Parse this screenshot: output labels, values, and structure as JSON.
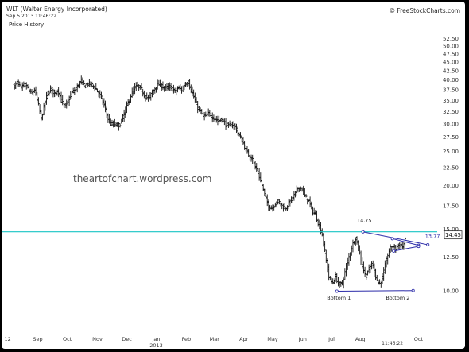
{
  "header": {
    "title": "WLT (Walter Energy Incorporated)",
    "subtitle": "Sep 5 2013 11:46:22",
    "pane_label": "Price History",
    "brand_icon": "copyright-icon",
    "brand_text": "FreeStockCharts.com",
    "watermark": "theartofchart.wordpress.com"
  },
  "colors": {
    "background": "#ffffff",
    "bars": "#111111",
    "support_line": "#19c5c5",
    "trend_lines": "#2a2aa8",
    "label_blue": "#2a2aa8"
  },
  "chart_data": {
    "type": "ohlc",
    "yscale": "log",
    "ylim": [
      9.3,
      55.5
    ],
    "y_ticks": [
      52.5,
      50.0,
      47.5,
      45.0,
      42.5,
      40.0,
      37.5,
      35.0,
      32.5,
      30.0,
      27.5,
      25.0,
      22.5,
      20.0,
      17.5,
      15.0,
      12.5,
      10.0
    ],
    "y_tick_labels": [
      "52.50",
      "50.00",
      "47.50",
      "45.00",
      "42.50",
      "40.00",
      "37.50",
      "35.00",
      "32.50",
      "30.00",
      "27.50",
      "25.00",
      "22.50",
      "20.00",
      "17.50",
      "15.00",
      "12.50",
      "10.00"
    ],
    "x_ticks": [
      {
        "label": "12",
        "week": -1,
        "sub": ""
      },
      {
        "label": "Sep",
        "week": 3.5,
        "sub": ""
      },
      {
        "label": "Oct",
        "week": 7.9,
        "sub": ""
      },
      {
        "label": "Nov",
        "week": 12.4,
        "sub": ""
      },
      {
        "label": "Dec",
        "week": 16.8,
        "sub": ""
      },
      {
        "label": "Jan",
        "week": 21.2,
        "sub": "2013"
      },
      {
        "label": "Feb",
        "week": 25.7,
        "sub": ""
      },
      {
        "label": "Mar",
        "week": 29.9,
        "sub": ""
      },
      {
        "label": "Apr",
        "week": 34.3,
        "sub": ""
      },
      {
        "label": "May",
        "week": 38.6,
        "sub": ""
      },
      {
        "label": "Jun",
        "week": 43.1,
        "sub": ""
      },
      {
        "label": "Jul",
        "week": 47.4,
        "sub": ""
      },
      {
        "label": "Aug",
        "week": 51.7,
        "sub": ""
      },
      {
        "label": "Oct",
        "week": 60.4,
        "sub": ""
      }
    ],
    "time_label": "11:46:22",
    "x_domain": [
      -1.2,
      63.2
    ],
    "price_series": {
      "name": "WLT",
      "points": [
        [
          0,
          38.5
        ],
        [
          0.5,
          39.5
        ],
        [
          1,
          37.8
        ],
        [
          1.5,
          38.8
        ],
        [
          2,
          38.0
        ],
        [
          2.5,
          36.5
        ],
        [
          3,
          37.5
        ],
        [
          3.5,
          34.5
        ],
        [
          4,
          31.0
        ],
        [
          4.5,
          34.0
        ],
        [
          5,
          36.8
        ],
        [
          5.5,
          37.8
        ],
        [
          6,
          36.5
        ],
        [
          6.5,
          37.5
        ],
        [
          7,
          35.0
        ],
        [
          7.5,
          33.5
        ],
        [
          8,
          34.8
        ],
        [
          8.5,
          36.5
        ],
        [
          9,
          37.5
        ],
        [
          9.5,
          38.5
        ],
        [
          10,
          39.8
        ],
        [
          10.5,
          38.5
        ],
        [
          11,
          39.0
        ],
        [
          11.5,
          38.8
        ],
        [
          12,
          38.2
        ],
        [
          12.5,
          37.0
        ],
        [
          13,
          35.5
        ],
        [
          13.5,
          33.5
        ],
        [
          14,
          31.0
        ],
        [
          14.5,
          29.8
        ],
        [
          15,
          30.0
        ],
        [
          15.5,
          29.5
        ],
        [
          16,
          30.5
        ],
        [
          16.5,
          32.5
        ],
        [
          17,
          34.5
        ],
        [
          17.5,
          36.5
        ],
        [
          18,
          38.0
        ],
        [
          18.5,
          38.5
        ],
        [
          19,
          37.5
        ],
        [
          19.5,
          36.0
        ],
        [
          20,
          35.5
        ],
        [
          20.5,
          36.5
        ],
        [
          21,
          38.0
        ],
        [
          21.5,
          39.0
        ],
        [
          22,
          38.5
        ],
        [
          22.5,
          37.8
        ],
        [
          23,
          38.2
        ],
        [
          23.5,
          38.0
        ],
        [
          24,
          37.0
        ],
        [
          24.5,
          38.0
        ],
        [
          25,
          37.5
        ],
        [
          25.5,
          39.0
        ],
        [
          26,
          39.5
        ],
        [
          26.5,
          37.0
        ],
        [
          27,
          35.0
        ],
        [
          27.5,
          33.0
        ],
        [
          28,
          32.0
        ],
        [
          28.5,
          31.5
        ],
        [
          29,
          32.0
        ],
        [
          29.5,
          31.5
        ],
        [
          30,
          31.0
        ],
        [
          30.5,
          30.5
        ],
        [
          31,
          31.0
        ],
        [
          31.5,
          30.0
        ],
        [
          32,
          29.5
        ],
        [
          32.5,
          30.0
        ],
        [
          33,
          29.5
        ],
        [
          33.5,
          28.0
        ],
        [
          34,
          27.0
        ],
        [
          34.5,
          25.5
        ],
        [
          35,
          24.5
        ],
        [
          35.5,
          24.0
        ],
        [
          36,
          22.5
        ],
        [
          36.5,
          21.5
        ],
        [
          37,
          20.0
        ],
        [
          37.5,
          18.5
        ],
        [
          38,
          17.5
        ],
        [
          38.5,
          17.2
        ],
        [
          39,
          17.8
        ],
        [
          39.5,
          18.0
        ],
        [
          40,
          17.5
        ],
        [
          40.5,
          17.2
        ],
        [
          41,
          17.8
        ],
        [
          41.5,
          18.3
        ],
        [
          42,
          19.0
        ],
        [
          42.5,
          19.8
        ],
        [
          43,
          19.5
        ],
        [
          43.5,
          18.5
        ],
        [
          44,
          18.0
        ],
        [
          44.5,
          17.0
        ],
        [
          45,
          16.5
        ],
        [
          45.5,
          15.5
        ],
        [
          46,
          14.5
        ],
        [
          46.5,
          12.5
        ],
        [
          47,
          11.0
        ],
        [
          47.5,
          10.5
        ],
        [
          48,
          11.0
        ],
        [
          48.5,
          10.4
        ],
        [
          49,
          10.5
        ],
        [
          49.5,
          11.5
        ],
        [
          50,
          12.5
        ],
        [
          50.5,
          13.5
        ],
        [
          51,
          14.2
        ],
        [
          51.5,
          13.0
        ],
        [
          52,
          11.8
        ],
        [
          52.5,
          11.0
        ],
        [
          53,
          11.5
        ],
        [
          53.5,
          12.0
        ],
        [
          54,
          11.0
        ],
        [
          54.5,
          10.4
        ],
        [
          55,
          10.9
        ],
        [
          55.5,
          12.0
        ],
        [
          56,
          13.0
        ],
        [
          56.5,
          13.5
        ],
        [
          57,
          13.2
        ],
        [
          57.5,
          13.6
        ],
        [
          58,
          13.4
        ],
        [
          58.5,
          14.0
        ]
      ]
    },
    "annotations": [
      {
        "text": "14.75",
        "week": 52.3,
        "price": 15.9
      },
      {
        "text": "13.77",
        "week": 62.5,
        "price": 14.3
      },
      {
        "text": "Bottom 1",
        "week": 48.5,
        "price": 9.55
      },
      {
        "text": "Bottom 2",
        "week": 57.3,
        "price": 9.55
      }
    ],
    "horizontal_line": {
      "price": 14.75
    },
    "last_price_box": {
      "text": "14.45",
      "price": 14.45
    },
    "trend_lines": [
      {
        "name": "neckline",
        "from": [
          52.1,
          14.75
        ],
        "to": [
          61.8,
          13.55
        ]
      },
      {
        "name": "bottom-line",
        "from": [
          48.2,
          9.98
        ],
        "to": [
          59.6,
          10.02
        ]
      },
      {
        "name": "triangle-upper",
        "from": [
          56.5,
          14.1
        ],
        "to": [
          60.4,
          13.5
        ]
      },
      {
        "name": "triangle-lower",
        "from": [
          56.7,
          13.0
        ],
        "to": [
          60.4,
          13.4
        ]
      }
    ]
  }
}
